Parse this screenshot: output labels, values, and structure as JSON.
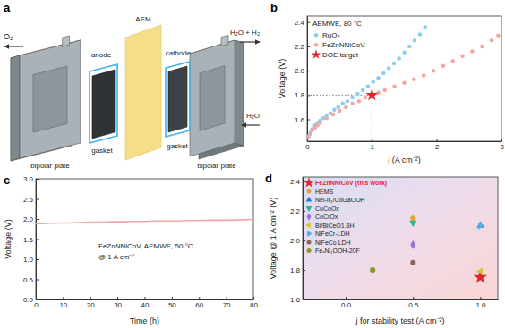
{
  "diagram": {
    "title": "a",
    "anode": "anode",
    "cathode": "cathode",
    "gaskets": [
      "gasket",
      "gasket"
    ],
    "membrane": "AEM",
    "plates": [
      "bipolar plate",
      "bipolar plate"
    ],
    "outlets": [
      "O₂",
      "H₂O + H₂"
    ],
    "inlet": "H₂O"
  },
  "chart_data": [
    {
      "type": "scatter",
      "title": "b",
      "annotations": [
        "AEMWE, 80 °C"
      ],
      "x_label": "j (A cm⁻²)",
      "y_label": "Voltage (V)",
      "xlim": [
        0,
        3
      ],
      "ylim": [
        1.42,
        2.45
      ],
      "xticks": [
        0,
        1,
        2,
        3
      ],
      "yticks": [
        1.6,
        1.8,
        {
          "value": 2,
          "label": "2.0"
        },
        2.2,
        2.4
      ],
      "legend": "upper left",
      "series": [
        {
          "name": "RuO₂",
          "color": "#8fcdef",
          "marker": "circle",
          "x": [
            0.02,
            0.05,
            0.08,
            0.12,
            0.16,
            0.2,
            0.25,
            0.3,
            0.36,
            0.42,
            0.48,
            0.55,
            0.62,
            0.7,
            0.78,
            0.86,
            0.94,
            1.02,
            1.1,
            1.18,
            1.26,
            1.34,
            1.42,
            1.5,
            1.58,
            1.66,
            1.74,
            1.82
          ],
          "values": [
            1.46,
            1.49,
            1.52,
            1.55,
            1.57,
            1.59,
            1.61,
            1.63,
            1.65,
            1.68,
            1.7,
            1.73,
            1.75,
            1.78,
            1.81,
            1.84,
            1.87,
            1.91,
            1.94,
            1.98,
            2.02,
            2.06,
            2.1,
            2.15,
            2.2,
            2.25,
            2.3,
            2.36
          ]
        },
        {
          "name": "FeZnNNiCoV",
          "color": "#f4a7a2",
          "marker": "circle",
          "x": [
            0.02,
            0.05,
            0.08,
            0.12,
            0.16,
            0.2,
            0.3,
            0.4,
            0.5,
            0.6,
            0.7,
            0.8,
            0.9,
            1.0,
            1.1,
            1.2,
            1.35,
            1.5,
            1.65,
            1.8,
            1.95,
            2.1,
            2.25,
            2.4,
            2.55,
            2.7,
            2.85,
            2.95
          ],
          "values": [
            1.45,
            1.48,
            1.51,
            1.53,
            1.55,
            1.57,
            1.61,
            1.64,
            1.67,
            1.7,
            1.73,
            1.75,
            1.78,
            1.8,
            1.82,
            1.84,
            1.87,
            1.9,
            1.93,
            1.96,
            2.0,
            2.04,
            2.08,
            2.12,
            2.16,
            2.2,
            2.25,
            2.29
          ]
        },
        {
          "name": "DOE target",
          "color": "#e3262b",
          "marker": "star",
          "line_style": "dotted",
          "x": [
            1
          ],
          "values": [
            1.8
          ]
        }
      ]
    },
    {
      "type": "line",
      "title": "c",
      "annotations": [
        "FeZnNNiCoV, AEMWE, 50 °C",
        "@ 1 A cm⁻²"
      ],
      "x_label": "Time (h)",
      "y_label": "Voltage (V)",
      "xlim": [
        0,
        80
      ],
      "ylim": [
        0,
        3
      ],
      "xticks": [
        0,
        10,
        20,
        30,
        40,
        50,
        60,
        70,
        80
      ],
      "yticks": [
        {
          "value": 0,
          "label": "0.0"
        },
        0.5,
        {
          "value": 1,
          "label": "1.0"
        },
        1.5,
        {
          "value": 2,
          "label": "2.0"
        },
        2.5,
        {
          "value": 3,
          "label": "3.0"
        }
      ],
      "x": [
        0,
        4,
        8,
        12,
        16,
        20,
        24,
        28,
        32,
        36,
        40,
        44,
        48,
        52,
        56,
        60,
        64,
        68,
        72,
        76,
        80
      ],
      "series": [
        {
          "color": "#f4a7a2",
          "values": [
            1.88,
            1.89,
            1.9,
            1.9,
            1.91,
            1.92,
            1.92,
            1.93,
            1.93,
            1.94,
            1.94,
            1.95,
            1.95,
            1.95,
            1.96,
            1.96,
            1.97,
            1.97,
            1.97,
            1.98,
            1.99
          ]
        }
      ]
    },
    {
      "type": "scatter",
      "title": "d",
      "x_label": "j for stability test (A cm⁻²)",
      "y_label": "Voltage @ 1 A cm⁻² (V)",
      "xlim": [
        -0.32,
        1.13
      ],
      "ylim": [
        1.6,
        2.43
      ],
      "xticks": [
        {
          "value": 0,
          "label": "0.0"
        },
        0.5,
        {
          "value": 1,
          "label": "1.0"
        }
      ],
      "yticks": [
        1.6,
        1.8,
        {
          "value": 2,
          "label": "2.0"
        },
        2.2,
        2.4
      ],
      "legend": "upper left",
      "series": [
        {
          "name": "FeZnNNiCoV (this work)",
          "color": "#e3262b",
          "marker": "star",
          "x": [
            1.0
          ],
          "values": [
            1.75
          ]
        },
        {
          "name": "HEMS",
          "color": "#e9a33c",
          "marker": "circle",
          "x": [
            0.5
          ],
          "values": [
            2.15
          ]
        },
        {
          "name": "Nei-Ir₁/CoGaOOH",
          "color": "#2b78d6",
          "marker": "triangle-up",
          "x": [
            1.0
          ],
          "values": [
            2.1
          ]
        },
        {
          "name": "CuCoOx",
          "color": "#2cb39a",
          "marker": "triangle-down",
          "x": [
            0.5
          ],
          "values": [
            2.12
          ]
        },
        {
          "name": "CoCrOx",
          "color": "#9a6fe0",
          "marker": "diamond",
          "x": [
            0.5
          ],
          "values": [
            1.97
          ]
        },
        {
          "name": "Bi/BiCeO1.8H",
          "color": "#d9c33a",
          "marker": "triangle-left",
          "x": [
            1.0
          ],
          "values": [
            1.79
          ]
        },
        {
          "name": "NiFeCr-LDH",
          "color": "#4fb0e8",
          "marker": "triangle-right",
          "x": [
            1.0
          ],
          "values": [
            2.1
          ]
        },
        {
          "name": "NiFeCo LDH",
          "color": "#8a6655",
          "marker": "circle",
          "x": [
            0.5
          ],
          "values": [
            1.85
          ]
        },
        {
          "name": "FeₓNi₁OOH-20F",
          "color": "#8a9a2a",
          "marker": "circle",
          "x": [
            0.2
          ],
          "values": [
            1.8
          ]
        }
      ]
    }
  ]
}
